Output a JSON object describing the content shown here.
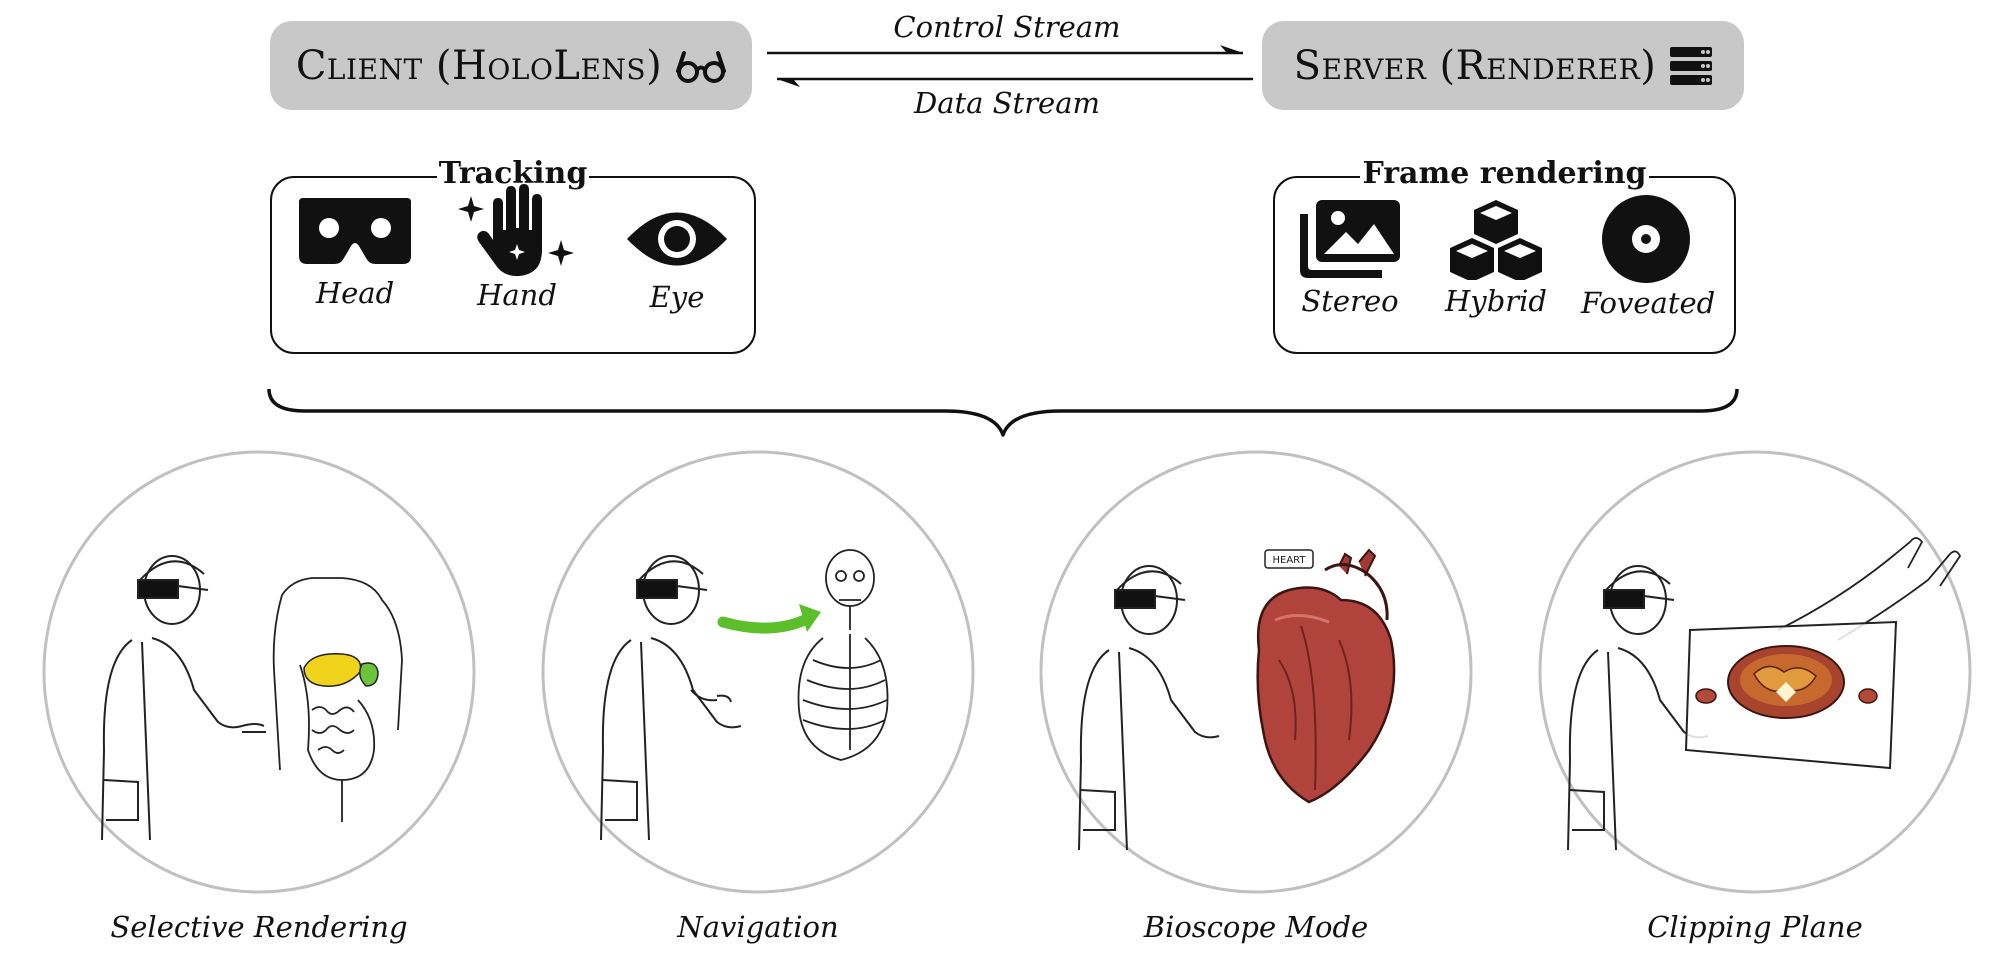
{
  "top": {
    "client_label": "Client (HoloLens)",
    "server_label": "Server (Renderer)",
    "control_stream": "Control Stream",
    "data_stream": "Data Stream"
  },
  "tracking": {
    "title": "Tracking",
    "items": [
      {
        "label": "Head",
        "icon": "vr-headset-icon"
      },
      {
        "label": "Hand",
        "icon": "sparkle-hand-icon"
      },
      {
        "label": "Eye",
        "icon": "eye-icon"
      }
    ]
  },
  "rendering": {
    "title": "Frame rendering",
    "items": [
      {
        "label": "Stereo",
        "icon": "images-icon"
      },
      {
        "label": "Hybrid",
        "icon": "cubes-icon"
      },
      {
        "label": "Foveated",
        "icon": "compact-disc-icon"
      }
    ]
  },
  "scenes": [
    {
      "label": "Selective Rendering"
    },
    {
      "label": "Navigation"
    },
    {
      "label": "Bioscope Mode",
      "note": "HEART"
    },
    {
      "label": "Clipping Plane"
    }
  ],
  "colors": {
    "pill": "#c8c8c8",
    "green_arrow": "#5cbf2a",
    "liver": "#f2d31b",
    "gallbladder": "#6cc43c",
    "heart": "#b0443c",
    "circle": "#c0c0c0"
  }
}
